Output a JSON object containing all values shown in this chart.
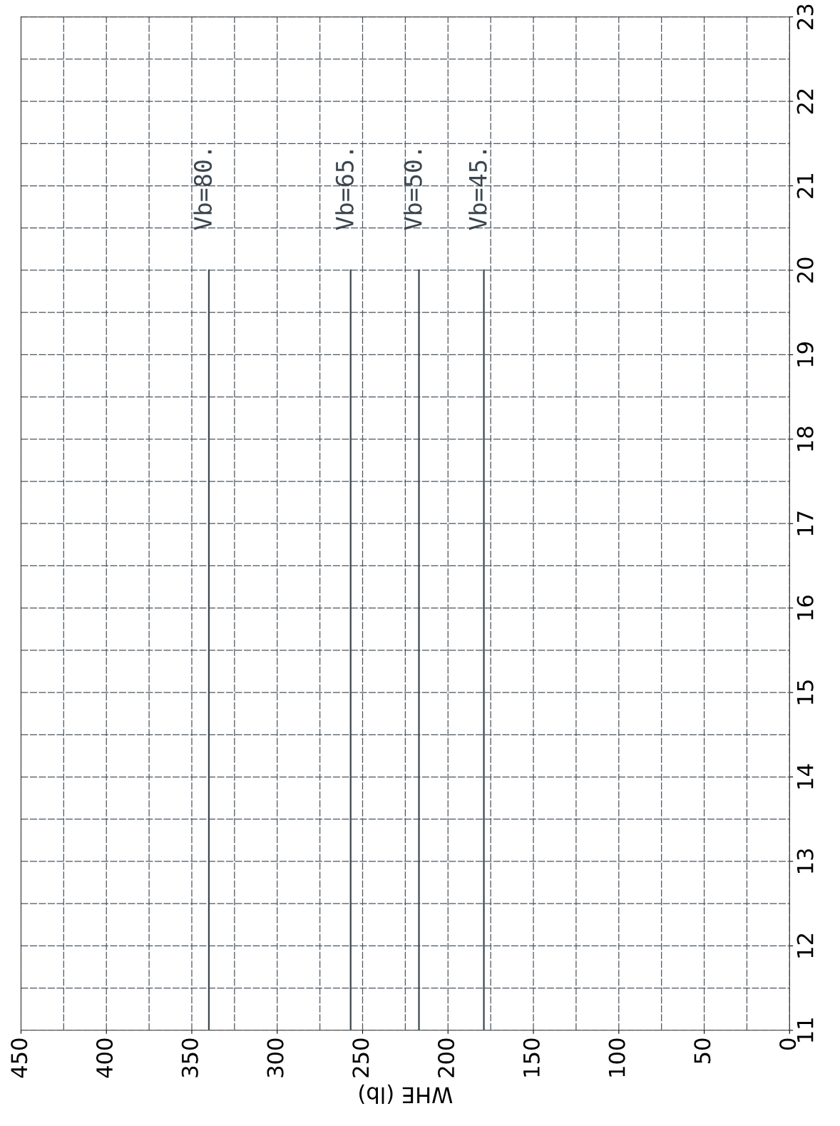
{
  "chart_data": {
    "type": "line",
    "xlabel": "WHE (lb)",
    "xlim": [
      450,
      0
    ],
    "xticks": [
      450,
      400,
      350,
      300,
      250,
      200,
      150,
      100,
      50,
      0
    ],
    "ylim": [
      11,
      23
    ],
    "yticks": [
      11,
      12,
      13,
      14,
      15,
      16,
      17,
      18,
      19,
      20,
      21,
      22,
      23
    ],
    "grid": true,
    "marker": "none",
    "line_style": "solid",
    "series": [
      {
        "name": "Vb=80.",
        "color": "#3a4650",
        "x": [
          340,
          340
        ],
        "values": [
          11,
          20
        ]
      },
      {
        "name": "Vb=65.",
        "color": "#3a4650",
        "x": [
          257,
          257
        ],
        "values": [
          11,
          20
        ]
      },
      {
        "name": "Vb=50.",
        "color": "#3a4650",
        "x": [
          217,
          217
        ],
        "values": [
          11,
          20
        ]
      },
      {
        "name": "Vb=45.",
        "color": "#3a4650",
        "x": [
          179,
          179
        ],
        "values": [
          11,
          20
        ]
      }
    ]
  }
}
